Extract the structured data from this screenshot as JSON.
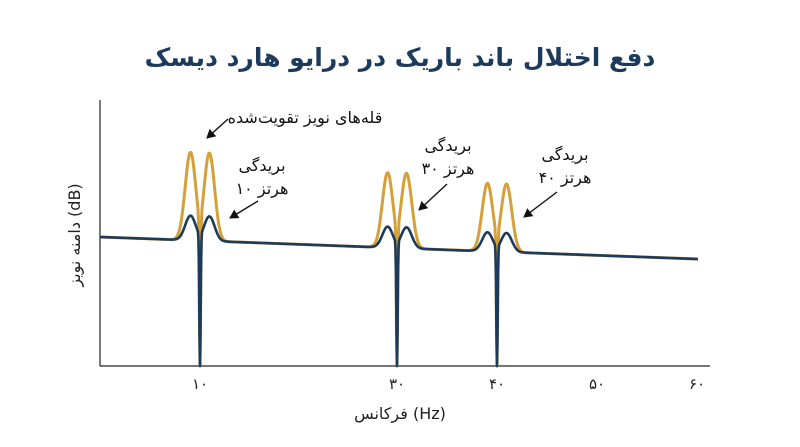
{
  "chart_data": {
    "type": "line",
    "title": "دفع اختلال باند باریک در درایو هارد دیسک",
    "xlabel": "فرکانس (Hz)",
    "ylabel": "دامنه نویز (dB)",
    "x_ticks": [
      {
        "value": 10,
        "label": "۱۰"
      },
      {
        "value": 30,
        "label": "۳۰"
      },
      {
        "value": 40,
        "label": "۴۰"
      },
      {
        "value": 50,
        "label": "۵۰"
      },
      {
        "value": 60,
        "label": "۶۰"
      }
    ],
    "xlim": [
      0,
      60
    ],
    "notches_hz": [
      10,
      30,
      40
    ],
    "series": [
      {
        "color": "#d4a03a"
      },
      {
        "color": "#1b3a5c"
      }
    ],
    "annotations": [
      {
        "text": "قله‌های نویز تقویت‌شده",
        "target_hz": 9.1
      },
      {
        "lines": [
          "بریدگی",
          "۱۰ هرتز"
        ],
        "target_hz": 12
      },
      {
        "lines": [
          "بریدگی",
          "۳۰ هرتز"
        ],
        "target_hz": 31
      },
      {
        "lines": [
          "بریدگی",
          "۴۰ هرتز"
        ],
        "target_hz": 41.3
      }
    ]
  }
}
